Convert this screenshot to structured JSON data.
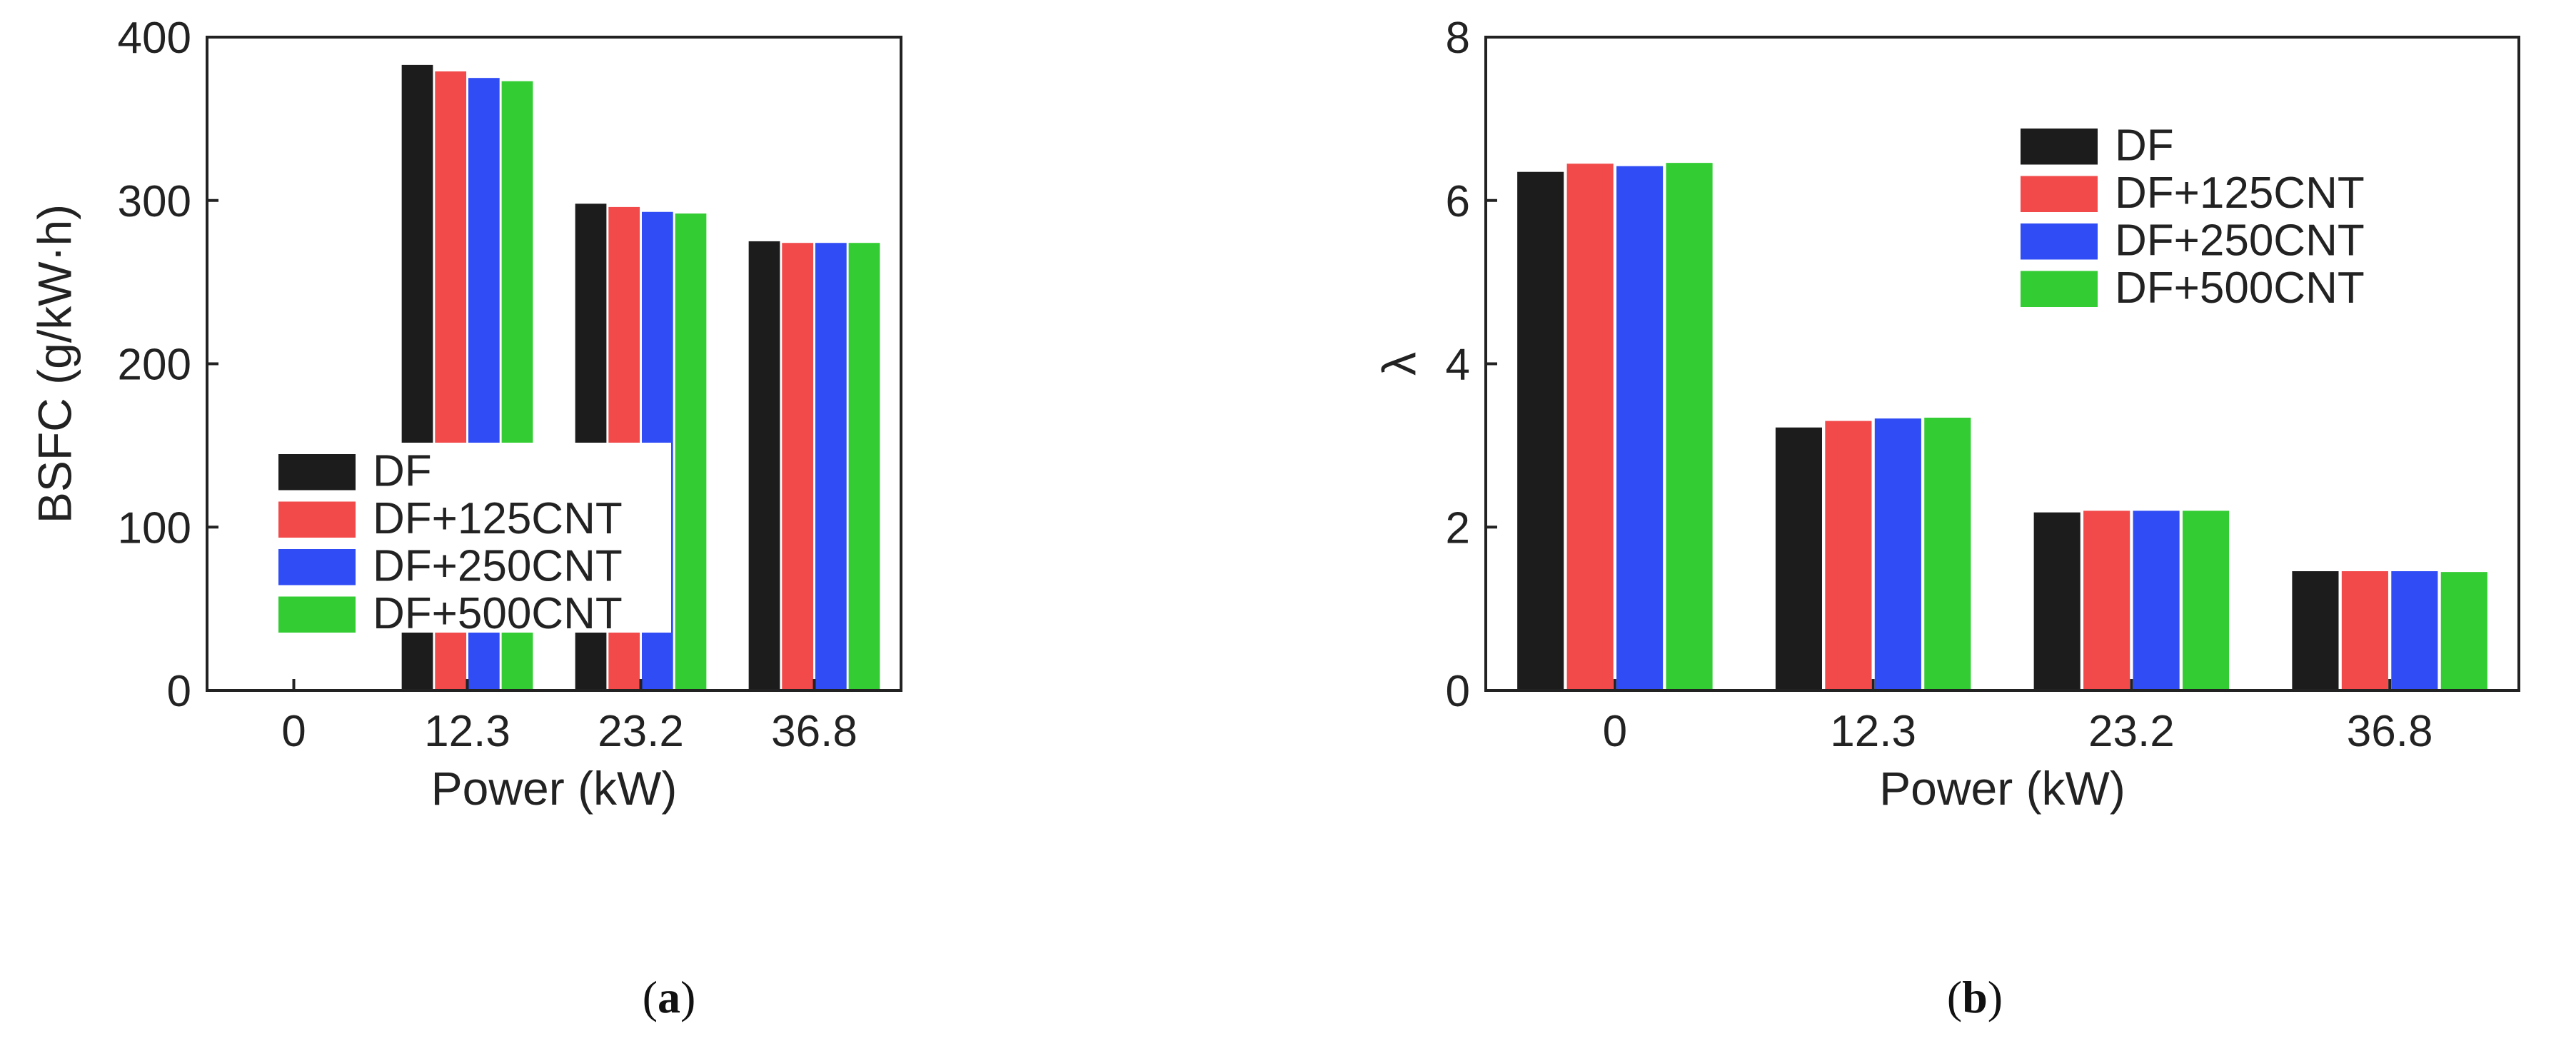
{
  "chart_data": [
    {
      "type": "bar",
      "panel": "(a)",
      "panel_letter": "a",
      "categories": [
        "0",
        "12.3",
        "23.2",
        "36.8"
      ],
      "series": [
        {
          "name": "DF",
          "color": "#1c1c1c",
          "values": [
            null,
            383,
            298,
            275
          ]
        },
        {
          "name": "DF+125CNT",
          "color": "#f24a4a",
          "values": [
            null,
            379,
            296,
            274
          ]
        },
        {
          "name": "DF+250CNT",
          "color": "#2f4cf5",
          "values": [
            null,
            375,
            293,
            274
          ]
        },
        {
          "name": "DF+500CNT",
          "color": "#33cc33",
          "values": [
            null,
            373,
            292,
            274
          ]
        }
      ],
      "xlabel": "Power (kW)",
      "ylabel": "BSFC (g/kW·h)",
      "ylim": [
        0,
        400
      ],
      "yticks": [
        "0",
        "100",
        "200",
        "300",
        "400"
      ],
      "legend_position": "lower-left"
    },
    {
      "type": "bar",
      "panel": "(b)",
      "panel_letter": "b",
      "categories": [
        "0",
        "12.3",
        "23.2",
        "36.8"
      ],
      "series": [
        {
          "name": "DF",
          "color": "#1c1c1c",
          "values": [
            6.35,
            3.22,
            2.18,
            1.46
          ]
        },
        {
          "name": "DF+125CNT",
          "color": "#f24a4a",
          "values": [
            6.45,
            3.3,
            2.2,
            1.46
          ]
        },
        {
          "name": "DF+250CNT",
          "color": "#2f4cf5",
          "values": [
            6.42,
            3.33,
            2.2,
            1.46
          ]
        },
        {
          "name": "DF+500CNT",
          "color": "#33cc33",
          "values": [
            6.46,
            3.34,
            2.2,
            1.45
          ]
        }
      ],
      "xlabel": "Power (kW)",
      "ylabel": "λ",
      "ylim": [
        0,
        8
      ],
      "yticks": [
        "0",
        "2",
        "4",
        "6",
        "8"
      ],
      "legend_position": "upper-right"
    }
  ]
}
